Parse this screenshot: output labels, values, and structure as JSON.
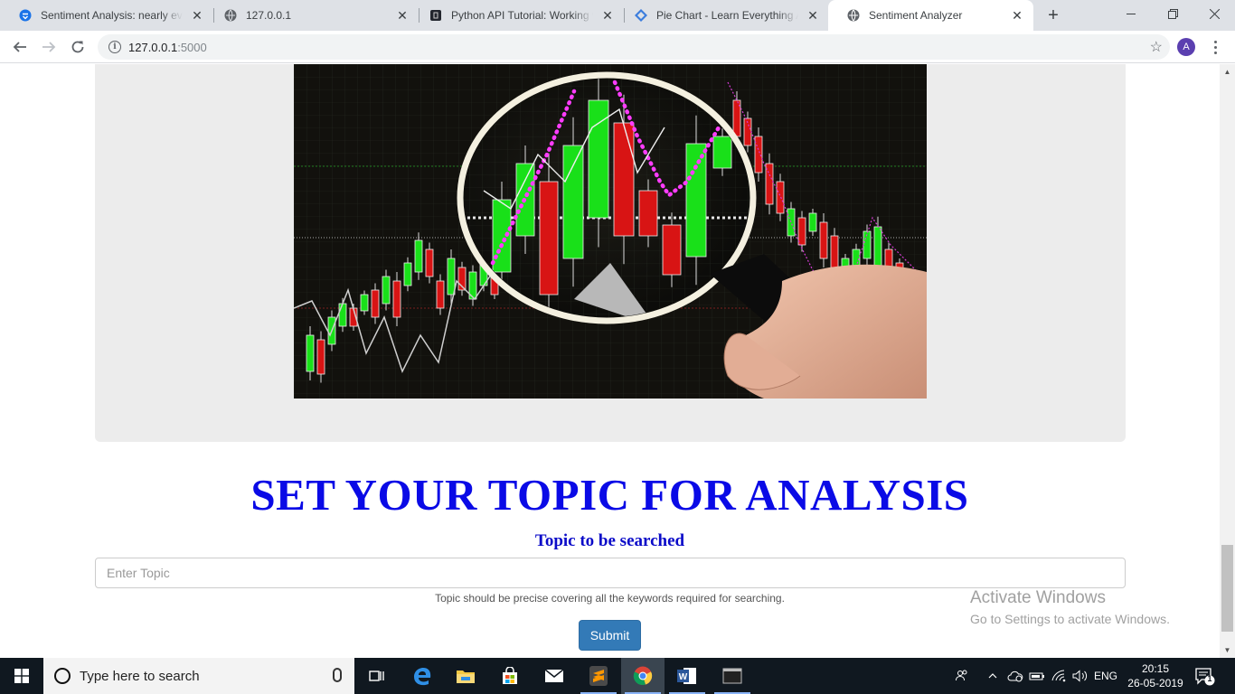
{
  "browser": {
    "tabs": [
      {
        "title": "Sentiment Analysis: nearly every",
        "favicon": "shield-icon",
        "active": false
      },
      {
        "title": "127.0.0.1",
        "favicon": "globe-icon",
        "active": false
      },
      {
        "title": "Python API Tutorial: Working wi",
        "favicon": "dark-square-icon",
        "active": false
      },
      {
        "title": "Pie Chart - Learn Everything Ab",
        "favicon": "diamond-logo-icon",
        "active": false
      },
      {
        "title": "Sentiment Analyzer",
        "favicon": "globe-icon",
        "active": true
      }
    ],
    "address": {
      "host": "127.0.0.1",
      "port": ":5000"
    },
    "profile_initial": "A"
  },
  "page": {
    "heading": "SET YOUR TOPIC FOR ANALYSIS",
    "topic_label": "Topic to be searched",
    "topic_placeholder": "Enter Topic",
    "topic_value": "",
    "helper_text": "Topic should be precise covering all the keywords required for searching.",
    "submit_label": "Submit"
  },
  "watermark": {
    "line1": "Activate Windows",
    "line2": "Go to Settings to activate Windows."
  },
  "taskbar": {
    "search_placeholder": "Type here to search",
    "apps": [
      "task-view-icon",
      "edge-icon",
      "file-explorer-icon",
      "store-icon",
      "mail-icon",
      "sublime-text-icon",
      "chrome-icon",
      "word-icon",
      "terminal-icon"
    ],
    "language": "ENG",
    "time": "20:15",
    "date": "26-05-2019",
    "notification_count": "1"
  },
  "colors": {
    "heading": "#0a0ae6",
    "submit": "#337ab7",
    "candle_up": "#19e019",
    "candle_down": "#d81414"
  }
}
